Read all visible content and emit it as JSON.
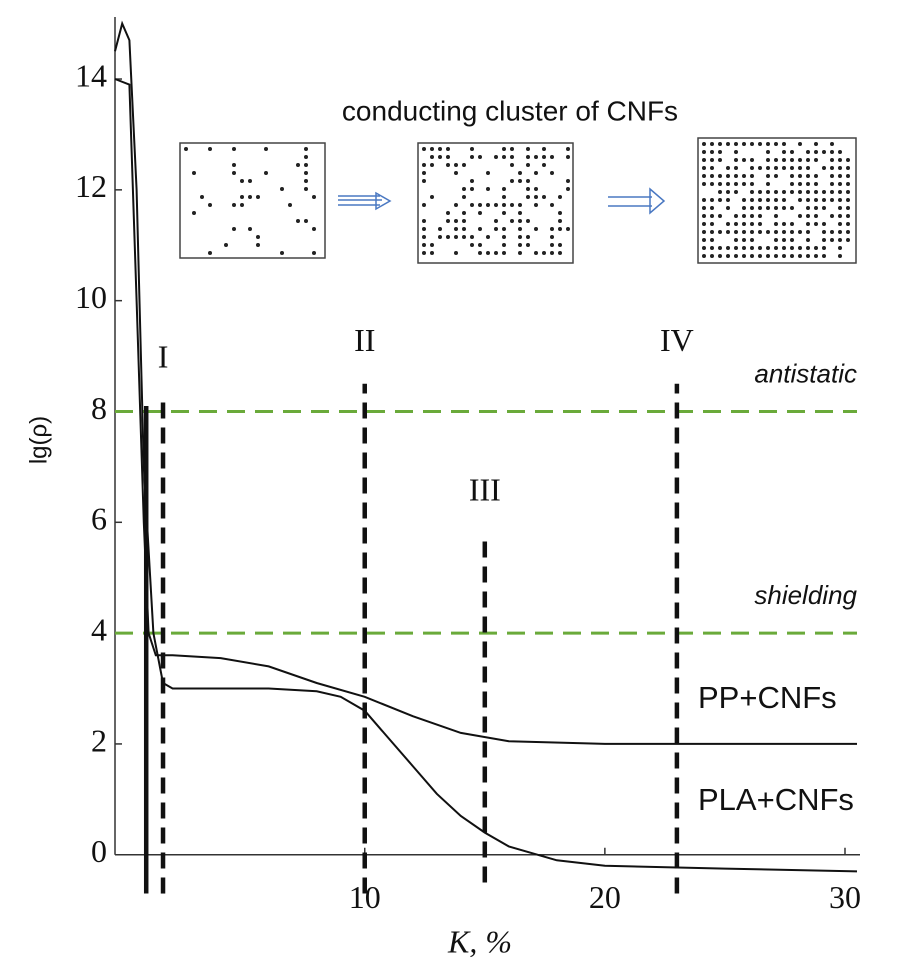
{
  "chart_data": {
    "type": "line",
    "inset_title": "conducting cluster of CNFs",
    "x_label": "K, %",
    "y_label": "lg(ρ)",
    "xlim": [
      -0.4,
      30.5
    ],
    "xticks": [
      10,
      20,
      30
    ],
    "ylim": [
      -0.6,
      15.3
    ],
    "yticks": [
      0,
      2,
      4,
      6,
      8,
      10,
      12,
      14
    ],
    "series": [
      {
        "name": "PP+CNFs",
        "color": "#111111",
        "x": [
          -0.4,
          0.2,
          0.5,
          0.8,
          1.0,
          1.3,
          2,
          4,
          6,
          8,
          10,
          12,
          14,
          16,
          20,
          30.5
        ],
        "values": [
          14,
          13.9,
          10,
          6,
          4,
          3.6,
          3.6,
          3.55,
          3.4,
          3.1,
          2.85,
          2.5,
          2.2,
          2.05,
          2.0,
          2.0
        ]
      },
      {
        "name": "PLA+CNFs",
        "color": "#111111",
        "x": [
          -0.4,
          -0.1,
          0.2,
          0.5,
          0.8,
          1.2,
          1.6,
          2,
          4,
          6,
          8,
          9,
          10,
          11,
          12,
          13,
          14,
          15,
          16,
          18,
          20,
          25,
          30.5
        ],
        "values": [
          14.5,
          15,
          14.7,
          12,
          7,
          4,
          3.1,
          3.0,
          3.0,
          3.0,
          2.95,
          2.85,
          2.6,
          2.1,
          1.6,
          1.1,
          0.7,
          0.4,
          0.15,
          -0.1,
          -0.2,
          -0.25,
          -0.3
        ]
      }
    ],
    "vertical_lines": [
      {
        "x": 0.9,
        "y": [
          -0.7,
          8.1
        ],
        "dashed": false
      },
      {
        "x": 1.6,
        "y": [
          -0.7,
          8.2
        ],
        "dashed": true,
        "label": "I"
      },
      {
        "x": 10,
        "y": [
          -0.7,
          8.5
        ],
        "dashed": true,
        "label": "II"
      },
      {
        "x": 15,
        "y": [
          -0.5,
          5.8
        ],
        "dashed": true,
        "label": "III"
      },
      {
        "x": 23,
        "y": [
          -0.7,
          8.5
        ],
        "dashed": true,
        "label": "IV"
      }
    ],
    "horizontal_lines": [
      {
        "y": 8,
        "label": "antistatic",
        "color": "#6aaa3a"
      },
      {
        "y": 4,
        "label": "shielding",
        "color": "#6aaa3a"
      }
    ]
  }
}
